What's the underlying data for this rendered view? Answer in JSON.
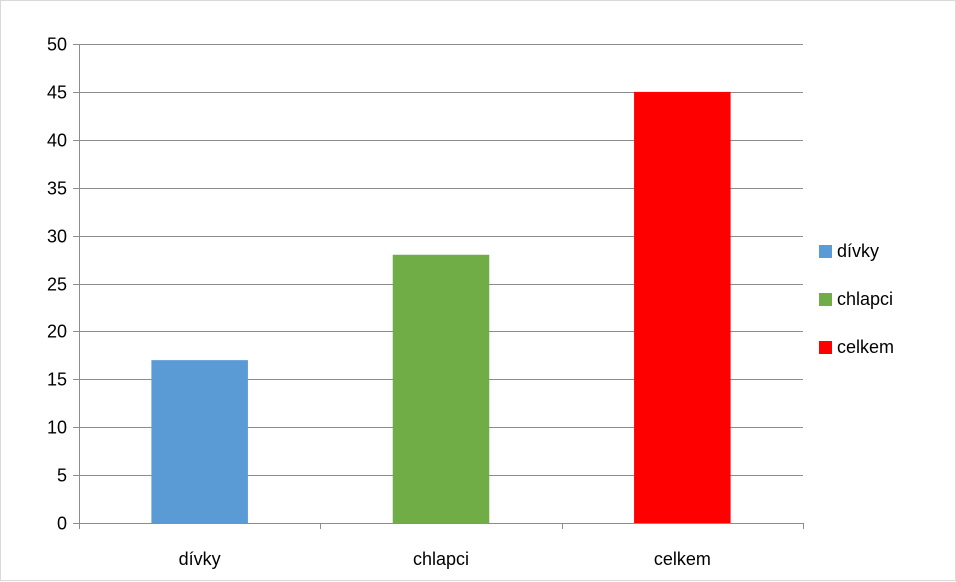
{
  "chart_data": {
    "type": "bar",
    "categories": [
      "dívky",
      "chlapci",
      "celkem"
    ],
    "values": [
      17,
      28,
      45
    ],
    "colors": [
      "#5b9bd5",
      "#70ad47",
      "#ff0000"
    ],
    "ylim": [
      0,
      50
    ],
    "ytick_step": 5,
    "yticks": [
      "0",
      "5",
      "10",
      "15",
      "20",
      "25",
      "30",
      "35",
      "40",
      "45",
      "50"
    ],
    "grid": true,
    "legend": {
      "placement": "right",
      "entries": [
        {
          "label": "dívky",
          "color": "#5b9bd5"
        },
        {
          "label": "chlapci",
          "color": "#70ad47"
        },
        {
          "label": "celkem",
          "color": "#ff0000"
        }
      ]
    },
    "title": "",
    "xlabel": "",
    "ylabel": ""
  }
}
